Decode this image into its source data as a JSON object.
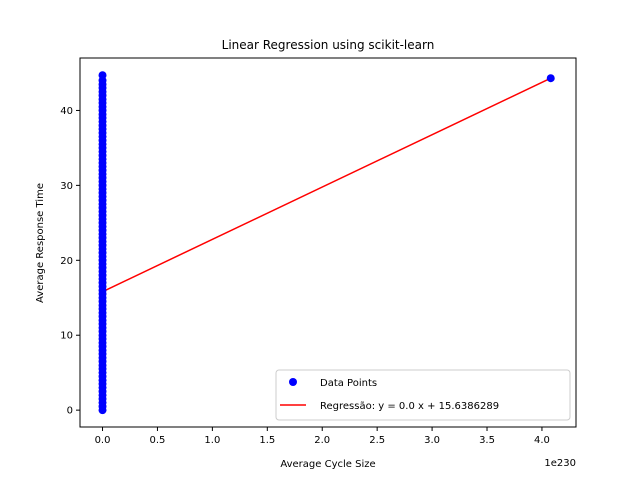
{
  "chart_data": {
    "type": "scatter",
    "title": "Linear Regression using scikit-learn",
    "xlabel": "Average Cycle Size",
    "ylabel": "Average Response Time",
    "x_offset_label": "1e230",
    "xlim": [
      -0.205,
      4.31
    ],
    "ylim": [
      -2.25,
      47.0
    ],
    "x_ticks": [
      0.0,
      0.5,
      1.0,
      1.5,
      2.0,
      2.5,
      3.0,
      3.5,
      4.0
    ],
    "x_tick_labels": [
      "0.0",
      "0.5",
      "1.0",
      "1.5",
      "2.0",
      "2.5",
      "3.0",
      "3.5",
      "4.0"
    ],
    "y_ticks": [
      0,
      10,
      20,
      30,
      40
    ],
    "y_tick_labels": [
      "0",
      "10",
      "20",
      "30",
      "40"
    ],
    "grid": false,
    "legend_position": "lower-right",
    "series": [
      {
        "name": "Data Points",
        "kind": "scatter",
        "color": "#0000ff",
        "x": [
          0,
          0,
          0,
          0,
          0,
          0,
          0,
          0,
          0,
          0,
          0,
          0,
          0,
          0,
          0,
          0,
          0,
          0,
          0,
          0,
          0,
          0,
          0,
          0,
          0,
          0,
          0,
          0,
          0,
          0,
          0,
          0,
          0,
          0,
          0,
          0,
          0,
          0,
          0,
          0,
          0,
          0,
          0,
          0,
          0,
          0,
          0,
          0,
          0,
          0,
          0,
          0,
          0,
          0,
          0,
          0,
          0,
          0,
          0,
          0,
          0,
          0,
          0,
          0,
          0,
          0,
          0,
          0,
          0,
          0,
          0,
          0,
          0,
          0,
          0,
          0,
          0,
          0,
          0,
          0,
          0,
          0,
          0,
          0,
          0,
          0,
          0,
          0,
          0,
          0,
          4.08
        ],
        "y": [
          0,
          0.5,
          1,
          1.5,
          2,
          2.5,
          3,
          3.5,
          4,
          4.5,
          5,
          5.5,
          6,
          6.5,
          7,
          7.5,
          8,
          8.5,
          9,
          9.5,
          10,
          10.5,
          11,
          11.5,
          12,
          12.5,
          13,
          13.5,
          14,
          14.5,
          15,
          15.5,
          16,
          16.5,
          17,
          17.5,
          18,
          18.5,
          19,
          19.5,
          20,
          20.5,
          21,
          21.5,
          22,
          22.5,
          23,
          23.5,
          24,
          24.5,
          25,
          25.5,
          26,
          26.5,
          27,
          27.5,
          28,
          28.5,
          29,
          29.5,
          30,
          30.5,
          31,
          31.5,
          32,
          32.5,
          33,
          33.5,
          34,
          34.5,
          35,
          35.5,
          36,
          36.5,
          37,
          37.5,
          38,
          38.5,
          39,
          39.5,
          40,
          40.5,
          41,
          41.5,
          42,
          42.5,
          43,
          43.5,
          44,
          44.7,
          44.3
        ]
      },
      {
        "name": "Regressão: $y = 0.0\\,x + 15.6386289$",
        "kind": "line",
        "color": "#ff0000",
        "x": [
          0.02,
          4.08
        ],
        "y": [
          15.95,
          44.3
        ]
      }
    ],
    "legend_entries": [
      {
        "label": "Data Points",
        "kind": "marker",
        "color": "#0000ff"
      },
      {
        "label": "Regressão: y = 0.0 x + 15.6386289",
        "kind": "line",
        "color": "#ff0000"
      }
    ]
  }
}
